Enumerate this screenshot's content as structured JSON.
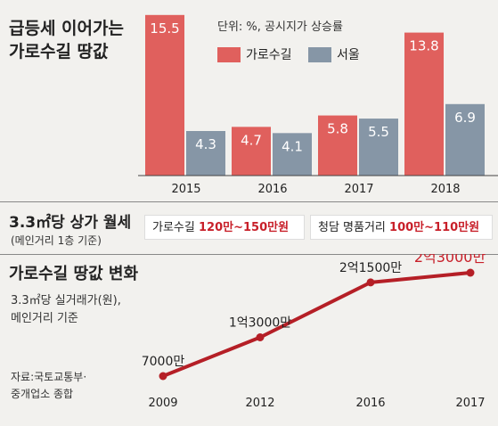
{
  "colors": {
    "garosu": "#e0605d",
    "seoul": "#8696a6",
    "line": "#b51f26",
    "highlight": "#c8202a",
    "background": "#f2f1ee"
  },
  "bar_chart": {
    "title_line1": "급등세 이어가는",
    "title_line2": "가로수길 땅값",
    "unit_note": "단위: %, 공시지가 상승률"
  },
  "rent": {
    "title": "3.3㎡당 상가 월세",
    "subtitle": "(메인거리 1층 기준)",
    "garosu_label": "가로수길",
    "garosu_value": "120만~150만원",
    "cheongdam_label": "청담 명품거리",
    "cheongdam_value": "100만~110만원"
  },
  "line_chart": {
    "title": "가로수길 땅값 변화",
    "note_line1": "3.3㎡당 실거래가(원),",
    "note_line2": "메인거리 기준",
    "source_line1": "자료:국토교통부·",
    "source_line2": "중개업소 종합"
  },
  "chart_data": [
    {
      "type": "bar",
      "title": "급등세 이어가는 가로수길 땅값",
      "unit": "단위: %, 공시지가 상승률",
      "categories": [
        "2015",
        "2016",
        "2017",
        "2018"
      ],
      "series": [
        {
          "name": "가로수길",
          "values": [
            15.5,
            4.7,
            5.8,
            13.8
          ],
          "labels": [
            "15.5",
            "4.7",
            "5.8",
            "13.8"
          ]
        },
        {
          "name": "서울",
          "values": [
            4.3,
            4.1,
            5.5,
            6.9
          ],
          "labels": [
            "4.3",
            "4.1",
            "5.5",
            "6.9"
          ]
        }
      ],
      "legend": "top-right",
      "grid": false
    },
    {
      "type": "line",
      "title": "가로수길 땅값 변화",
      "x": [
        "2009",
        "2012",
        "2016",
        "2017"
      ],
      "y": [
        70000000,
        130000000,
        215000000,
        230000000
      ],
      "labels": [
        "7000만",
        "1억3000만",
        "2억1500만",
        "2억3000만"
      ],
      "grid": false
    }
  ]
}
